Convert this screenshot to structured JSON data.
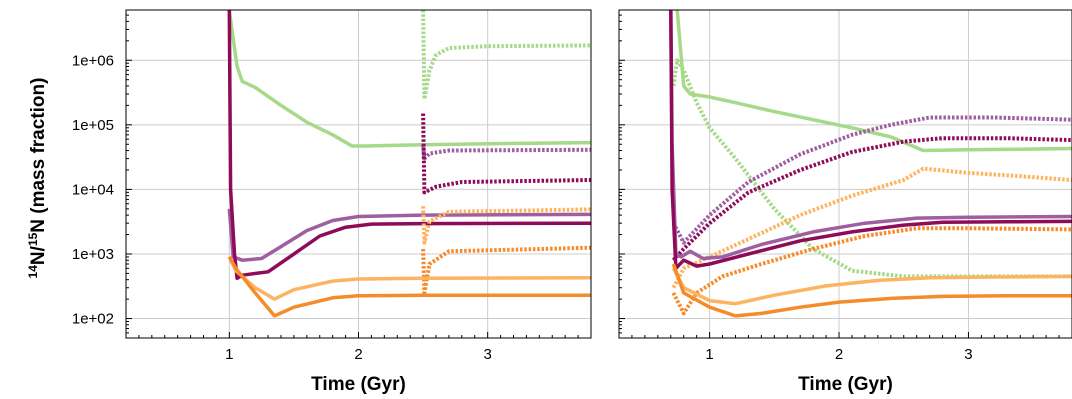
{
  "chart_data": [
    {
      "type": "line",
      "panel": "left",
      "xlabel": "Time (Gyr)",
      "ylabel_parts": [
        "14",
        "N/",
        "15",
        "N (mass fraction)"
      ],
      "xlim": [
        0.2,
        3.8
      ],
      "ylim": [
        50,
        6000000
      ],
      "yscale": "log",
      "xticks": [
        1,
        2,
        3
      ],
      "yticks": [
        100,
        1000,
        10000,
        100000,
        1000000
      ],
      "ytick_labels": [
        "1e+02",
        "1e+03",
        "1e+04",
        "1e+05",
        "1e+06"
      ],
      "grid": true,
      "series": [
        {
          "color": "#a6d98a",
          "style": "solid",
          "points": [
            [
              1.0,
              6000000
            ],
            [
              1.02,
              3000000
            ],
            [
              1.06,
              800000
            ],
            [
              1.1,
              470000
            ],
            [
              1.2,
              380000
            ],
            [
              1.4,
              200000
            ],
            [
              1.6,
              110000
            ],
            [
              1.8,
              70000
            ],
            [
              1.95,
              47000
            ],
            [
              2.05,
              47000
            ],
            [
              2.5,
              49000
            ],
            [
              3.0,
              51000
            ],
            [
              3.8,
              53000
            ]
          ]
        },
        {
          "color": "#a6d98a",
          "style": "dotted",
          "points": [
            [
              2.5,
              6000000
            ],
            [
              2.51,
              250000
            ],
            [
              2.55,
              700000
            ],
            [
              2.6,
              1200000
            ],
            [
              2.7,
              1550000
            ],
            [
              3.0,
              1650000
            ],
            [
              3.8,
              1700000
            ]
          ]
        },
        {
          "color": "#9e5ea0",
          "style": "dotted",
          "points": [
            [
              2.5,
              48000
            ],
            [
              2.51,
              30000
            ],
            [
              2.55,
              36000
            ],
            [
              2.7,
              40000
            ],
            [
              3.8,
              41000
            ]
          ]
        },
        {
          "color": "#8e0b5a",
          "style": "dotted",
          "points": [
            [
              2.5,
              150000
            ],
            [
              2.51,
              9000
            ],
            [
              2.6,
              11000
            ],
            [
              2.8,
              13000
            ],
            [
              3.8,
              14000
            ]
          ]
        },
        {
          "color": "#9e5ea0",
          "style": "solid",
          "points": [
            [
              1.0,
              5000
            ],
            [
              1.03,
              900
            ],
            [
              1.1,
              800
            ],
            [
              1.25,
              850
            ],
            [
              1.4,
              1300
            ],
            [
              1.6,
              2300
            ],
            [
              1.8,
              3300
            ],
            [
              2.0,
              3800
            ],
            [
              2.5,
              4000
            ],
            [
              3.8,
              4100
            ]
          ]
        },
        {
          "color": "#8e0b5a",
          "style": "solid",
          "points": [
            [
              1.0,
              6000000
            ],
            [
              1.01,
              10000
            ],
            [
              1.04,
              1000
            ],
            [
              1.06,
              420
            ],
            [
              1.1,
              470
            ],
            [
              1.3,
              530
            ],
            [
              1.5,
              1000
            ],
            [
              1.7,
              1900
            ],
            [
              1.9,
              2600
            ],
            [
              2.1,
              2900
            ],
            [
              2.5,
              2950
            ],
            [
              3.8,
              3000
            ]
          ]
        },
        {
          "color": "#fdb462",
          "style": "dotted",
          "points": [
            [
              2.5,
              5500
            ],
            [
              2.51,
              1500
            ],
            [
              2.55,
              3200
            ],
            [
              2.7,
              4500
            ],
            [
              3.8,
              4900
            ]
          ]
        },
        {
          "color": "#f58b2b",
          "style": "dotted",
          "points": [
            [
              2.5,
              1200
            ],
            [
              2.51,
              250
            ],
            [
              2.55,
              700
            ],
            [
              2.7,
              1100
            ],
            [
              3.8,
              1250
            ]
          ]
        },
        {
          "color": "#fdb462",
          "style": "solid",
          "points": [
            [
              1.0,
              900
            ],
            [
              1.05,
              550
            ],
            [
              1.2,
              300
            ],
            [
              1.35,
              200
            ],
            [
              1.5,
              280
            ],
            [
              1.8,
              380
            ],
            [
              2.0,
              410
            ],
            [
              2.5,
              420
            ],
            [
              3.8,
              430
            ]
          ]
        },
        {
          "color": "#f58b2b",
          "style": "solid",
          "points": [
            [
              1.0,
              900
            ],
            [
              1.05,
              600
            ],
            [
              1.2,
              250
            ],
            [
              1.35,
              110
            ],
            [
              1.5,
              150
            ],
            [
              1.8,
              210
            ],
            [
              2.0,
              225
            ],
            [
              2.5,
              230
            ],
            [
              3.8,
              230
            ]
          ]
        }
      ]
    },
    {
      "type": "line",
      "panel": "right",
      "xlabel": "Time (Gyr)",
      "xlim": [
        0.3,
        3.8
      ],
      "ylim": [
        50,
        6000000
      ],
      "yscale": "log",
      "xticks": [
        1,
        2,
        3
      ],
      "yticks": [
        100,
        1000,
        10000,
        100000,
        1000000
      ],
      "grid": true,
      "series": [
        {
          "color": "#a6d98a",
          "style": "solid",
          "points": [
            [
              0.75,
              6000000
            ],
            [
              0.77,
              2000000
            ],
            [
              0.8,
              400000
            ],
            [
              0.85,
              300000
            ],
            [
              1.0,
              270000
            ],
            [
              1.2,
              220000
            ],
            [
              1.5,
              160000
            ],
            [
              1.8,
              120000
            ],
            [
              2.1,
              90000
            ],
            [
              2.4,
              65000
            ],
            [
              2.65,
              40000
            ],
            [
              3.0,
              41000
            ],
            [
              3.4,
              42000
            ],
            [
              3.8,
              43000
            ]
          ]
        },
        {
          "color": "#a6d98a",
          "style": "dotted",
          "points": [
            [
              0.72,
              400000
            ],
            [
              0.75,
              1000000
            ],
            [
              0.8,
              700000
            ],
            [
              0.9,
              220000
            ],
            [
              1.0,
              90000
            ],
            [
              1.2,
              30000
            ],
            [
              1.5,
              5000
            ],
            [
              1.8,
              1200
            ],
            [
              2.1,
              550
            ],
            [
              2.5,
              450
            ],
            [
              3.8,
              450
            ]
          ]
        },
        {
          "color": "#9e5ea0",
          "style": "dotted",
          "points": [
            [
              0.72,
              3000
            ],
            [
              0.8,
              1500
            ],
            [
              1.0,
              4000
            ],
            [
              1.3,
              13000
            ],
            [
              1.7,
              35000
            ],
            [
              2.1,
              70000
            ],
            [
              2.4,
              100000
            ],
            [
              2.7,
              130000
            ],
            [
              3.2,
              130000
            ],
            [
              3.8,
              120000
            ]
          ]
        },
        {
          "color": "#8e0b5a",
          "style": "dotted",
          "points": [
            [
              0.72,
              800
            ],
            [
              0.8,
              1200
            ],
            [
              1.0,
              3000
            ],
            [
              1.3,
              9000
            ],
            [
              1.7,
              20000
            ],
            [
              2.1,
              38000
            ],
            [
              2.5,
              55000
            ],
            [
              2.8,
              62000
            ],
            [
              3.3,
              62000
            ],
            [
              3.8,
              58000
            ]
          ]
        },
        {
          "color": "#fdb462",
          "style": "dotted",
          "points": [
            [
              0.72,
              300
            ],
            [
              0.8,
              600
            ],
            [
              1.0,
              900
            ],
            [
              1.3,
              1700
            ],
            [
              1.7,
              4000
            ],
            [
              2.1,
              8000
            ],
            [
              2.5,
              14000
            ],
            [
              2.65,
              21000
            ],
            [
              3.0,
              18000
            ],
            [
              3.4,
              16000
            ],
            [
              3.8,
              14000
            ]
          ]
        },
        {
          "color": "#f58b2b",
          "style": "dotted",
          "points": [
            [
              0.72,
              250
            ],
            [
              0.8,
              120
            ],
            [
              0.9,
              250
            ],
            [
              1.1,
              450
            ],
            [
              1.4,
              700
            ],
            [
              1.8,
              1200
            ],
            [
              2.2,
              1900
            ],
            [
              2.6,
              2500
            ],
            [
              3.0,
              2500
            ],
            [
              3.8,
              2400
            ]
          ]
        },
        {
          "color": "#9e5ea0",
          "style": "solid",
          "points": [
            [
              0.7,
              6000000
            ],
            [
              0.71,
              50000
            ],
            [
              0.74,
              1000
            ],
            [
              0.78,
              900
            ],
            [
              0.85,
              1100
            ],
            [
              0.95,
              850
            ],
            [
              1.1,
              900
            ],
            [
              1.4,
              1400
            ],
            [
              1.8,
              2200
            ],
            [
              2.2,
              3000
            ],
            [
              2.6,
              3600
            ],
            [
              3.0,
              3700
            ],
            [
              3.8,
              3800
            ]
          ]
        },
        {
          "color": "#8e0b5a",
          "style": "solid",
          "points": [
            [
              0.7,
              6000000
            ],
            [
              0.71,
              10000
            ],
            [
              0.74,
              600
            ],
            [
              0.8,
              800
            ],
            [
              0.9,
              650
            ],
            [
              1.0,
              700
            ],
            [
              1.3,
              1000
            ],
            [
              1.7,
              1600
            ],
            [
              2.1,
              2200
            ],
            [
              2.5,
              2800
            ],
            [
              2.8,
              3100
            ],
            [
              3.3,
              3150
            ],
            [
              3.8,
              3200
            ]
          ]
        },
        {
          "color": "#fdb462",
          "style": "solid",
          "points": [
            [
              0.72,
              600
            ],
            [
              0.8,
              300
            ],
            [
              1.0,
              190
            ],
            [
              1.2,
              170
            ],
            [
              1.5,
              230
            ],
            [
              1.9,
              320
            ],
            [
              2.3,
              390
            ],
            [
              2.7,
              430
            ],
            [
              3.2,
              440
            ],
            [
              3.8,
              450
            ]
          ]
        },
        {
          "color": "#f58b2b",
          "style": "solid",
          "points": [
            [
              0.72,
              700
            ],
            [
              0.8,
              250
            ],
            [
              1.0,
              150
            ],
            [
              1.2,
              110
            ],
            [
              1.4,
              120
            ],
            [
              1.7,
              150
            ],
            [
              2.0,
              180
            ],
            [
              2.4,
              205
            ],
            [
              2.8,
              220
            ],
            [
              3.3,
              225
            ],
            [
              3.8,
              225
            ]
          ]
        }
      ]
    }
  ]
}
